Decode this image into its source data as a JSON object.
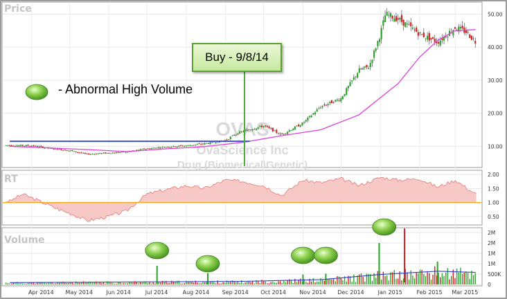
{
  "chart_data": [
    {
      "type": "candlestick",
      "panel": "price",
      "title": "Price",
      "ticker_watermark": "OVAS",
      "company_watermark": "OvaScience Inc",
      "industry_watermark": "Drug (Biomedical\\Genetic)",
      "y_ticks": [
        "10.00",
        "20.00",
        "30.00",
        "40.00",
        "50.00"
      ],
      "ylim": [
        4,
        53
      ],
      "x_ticks": [
        "Apr 2014",
        "May 2014",
        "Jun 2014",
        "Jul 2014",
        "Aug 2014",
        "Sep 2014",
        "Oct 2014",
        "Nov 2014",
        "Dec 2014",
        "Jan 2015",
        "Feb 2015",
        "Mar 2015"
      ],
      "close_series": [
        [
          "2014-03-15",
          10.3
        ],
        [
          "2014-04-01",
          10.2
        ],
        [
          "2014-04-15",
          9.4
        ],
        [
          "2014-05-01",
          8.7
        ],
        [
          "2014-05-15",
          7.6
        ],
        [
          "2014-06-01",
          8.0
        ],
        [
          "2014-06-15",
          8.3
        ],
        [
          "2014-07-01",
          9.3
        ],
        [
          "2014-07-15",
          9.8
        ],
        [
          "2014-08-01",
          10.2
        ],
        [
          "2014-08-15",
          10.8
        ],
        [
          "2014-09-01",
          11.8
        ],
        [
          "2014-09-08",
          13.5
        ],
        [
          "2014-09-15",
          14.6
        ],
        [
          "2014-10-01",
          16.2
        ],
        [
          "2014-10-15",
          13.5
        ],
        [
          "2014-11-01",
          17.0
        ],
        [
          "2014-11-15",
          22.0
        ],
        [
          "2014-12-01",
          24.5
        ],
        [
          "2014-12-15",
          33.0
        ],
        [
          "2014-12-23",
          34.0
        ],
        [
          "2015-01-01",
          44.0
        ],
        [
          "2015-01-05",
          50.0
        ],
        [
          "2015-01-15",
          48.5
        ],
        [
          "2015-02-01",
          44.0
        ],
        [
          "2015-02-15",
          41.5
        ],
        [
          "2015-03-01",
          46.0
        ],
        [
          "2015-03-10",
          44.5
        ],
        [
          "2015-03-17",
          41.5
        ]
      ],
      "moving_average": [
        [
          "2014-03-15",
          10.0
        ],
        [
          "2014-05-15",
          9.0
        ],
        [
          "2014-06-15",
          8.4
        ],
        [
          "2014-07-15",
          9.2
        ],
        [
          "2014-08-15",
          9.9
        ],
        [
          "2014-09-15",
          11.2
        ],
        [
          "2014-10-15",
          13.2
        ],
        [
          "2014-11-15",
          15.0
        ],
        [
          "2014-12-15",
          19.5
        ],
        [
          "2015-01-15",
          29.0
        ],
        [
          "2015-02-01",
          37.0
        ],
        [
          "2015-02-15",
          42.0
        ],
        [
          "2015-03-01",
          45.0
        ],
        [
          "2015-03-17",
          45.3
        ]
      ],
      "base_line": {
        "from": "2014-03-15",
        "to": "2014-09-20",
        "value": 11.5
      }
    },
    {
      "type": "area",
      "panel": "relative_strength",
      "title": "RT",
      "y_ticks": [
        "0.50",
        "1.00",
        "1.50",
        "2.00"
      ],
      "ylim": [
        0.25,
        2.1
      ],
      "reference_value": 1.0,
      "series": [
        [
          "2014-03-15",
          1.05
        ],
        [
          "2014-03-25",
          1.3
        ],
        [
          "2014-04-05",
          1.1
        ],
        [
          "2014-04-20",
          0.8
        ],
        [
          "2014-05-05",
          0.55
        ],
        [
          "2014-05-15",
          0.35
        ],
        [
          "2014-06-01",
          0.5
        ],
        [
          "2014-06-15",
          0.7
        ],
        [
          "2014-07-01",
          1.3
        ],
        [
          "2014-07-15",
          1.45
        ],
        [
          "2014-08-01",
          1.6
        ],
        [
          "2014-08-15",
          1.5
        ],
        [
          "2014-09-01",
          1.8
        ],
        [
          "2014-09-15",
          1.75
        ],
        [
          "2014-10-01",
          1.6
        ],
        [
          "2014-10-15",
          1.25
        ],
        [
          "2014-11-01",
          1.8
        ],
        [
          "2014-11-15",
          1.7
        ],
        [
          "2014-12-01",
          1.85
        ],
        [
          "2014-12-15",
          1.6
        ],
        [
          "2015-01-01",
          1.9
        ],
        [
          "2015-01-15",
          1.8
        ],
        [
          "2015-02-01",
          1.85
        ],
        [
          "2015-02-15",
          1.55
        ],
        [
          "2015-03-01",
          1.8
        ],
        [
          "2015-03-17",
          1.3
        ]
      ]
    },
    {
      "type": "bar",
      "panel": "volume",
      "title": "Volume",
      "y_ticks": [
        "0",
        "500K",
        "1M",
        "1M",
        "2M",
        "2M"
      ],
      "ylim": [
        0,
        2600000
      ],
      "high_volume_days": [
        [
          "2014-07-09",
          900000
        ],
        [
          "2014-08-18",
          550000
        ],
        [
          "2014-11-01",
          480000
        ],
        [
          "2014-11-19",
          520000
        ],
        [
          "2014-12-31",
          2000000
        ],
        [
          "2015-01-20",
          2700000
        ],
        [
          "2015-02-15",
          1100000
        ]
      ],
      "average_volume": [
        [
          "2014-03-15",
          90000
        ],
        [
          "2014-09-15",
          150000
        ],
        [
          "2014-11-15",
          230000
        ],
        [
          "2015-01-01",
          480000
        ],
        [
          "2015-02-15",
          640000
        ],
        [
          "2015-03-17",
          580000
        ]
      ]
    }
  ],
  "annotations": {
    "buy_label": "Buy - 9/8/14",
    "legend_text": "- Abnormal High Volume"
  }
}
